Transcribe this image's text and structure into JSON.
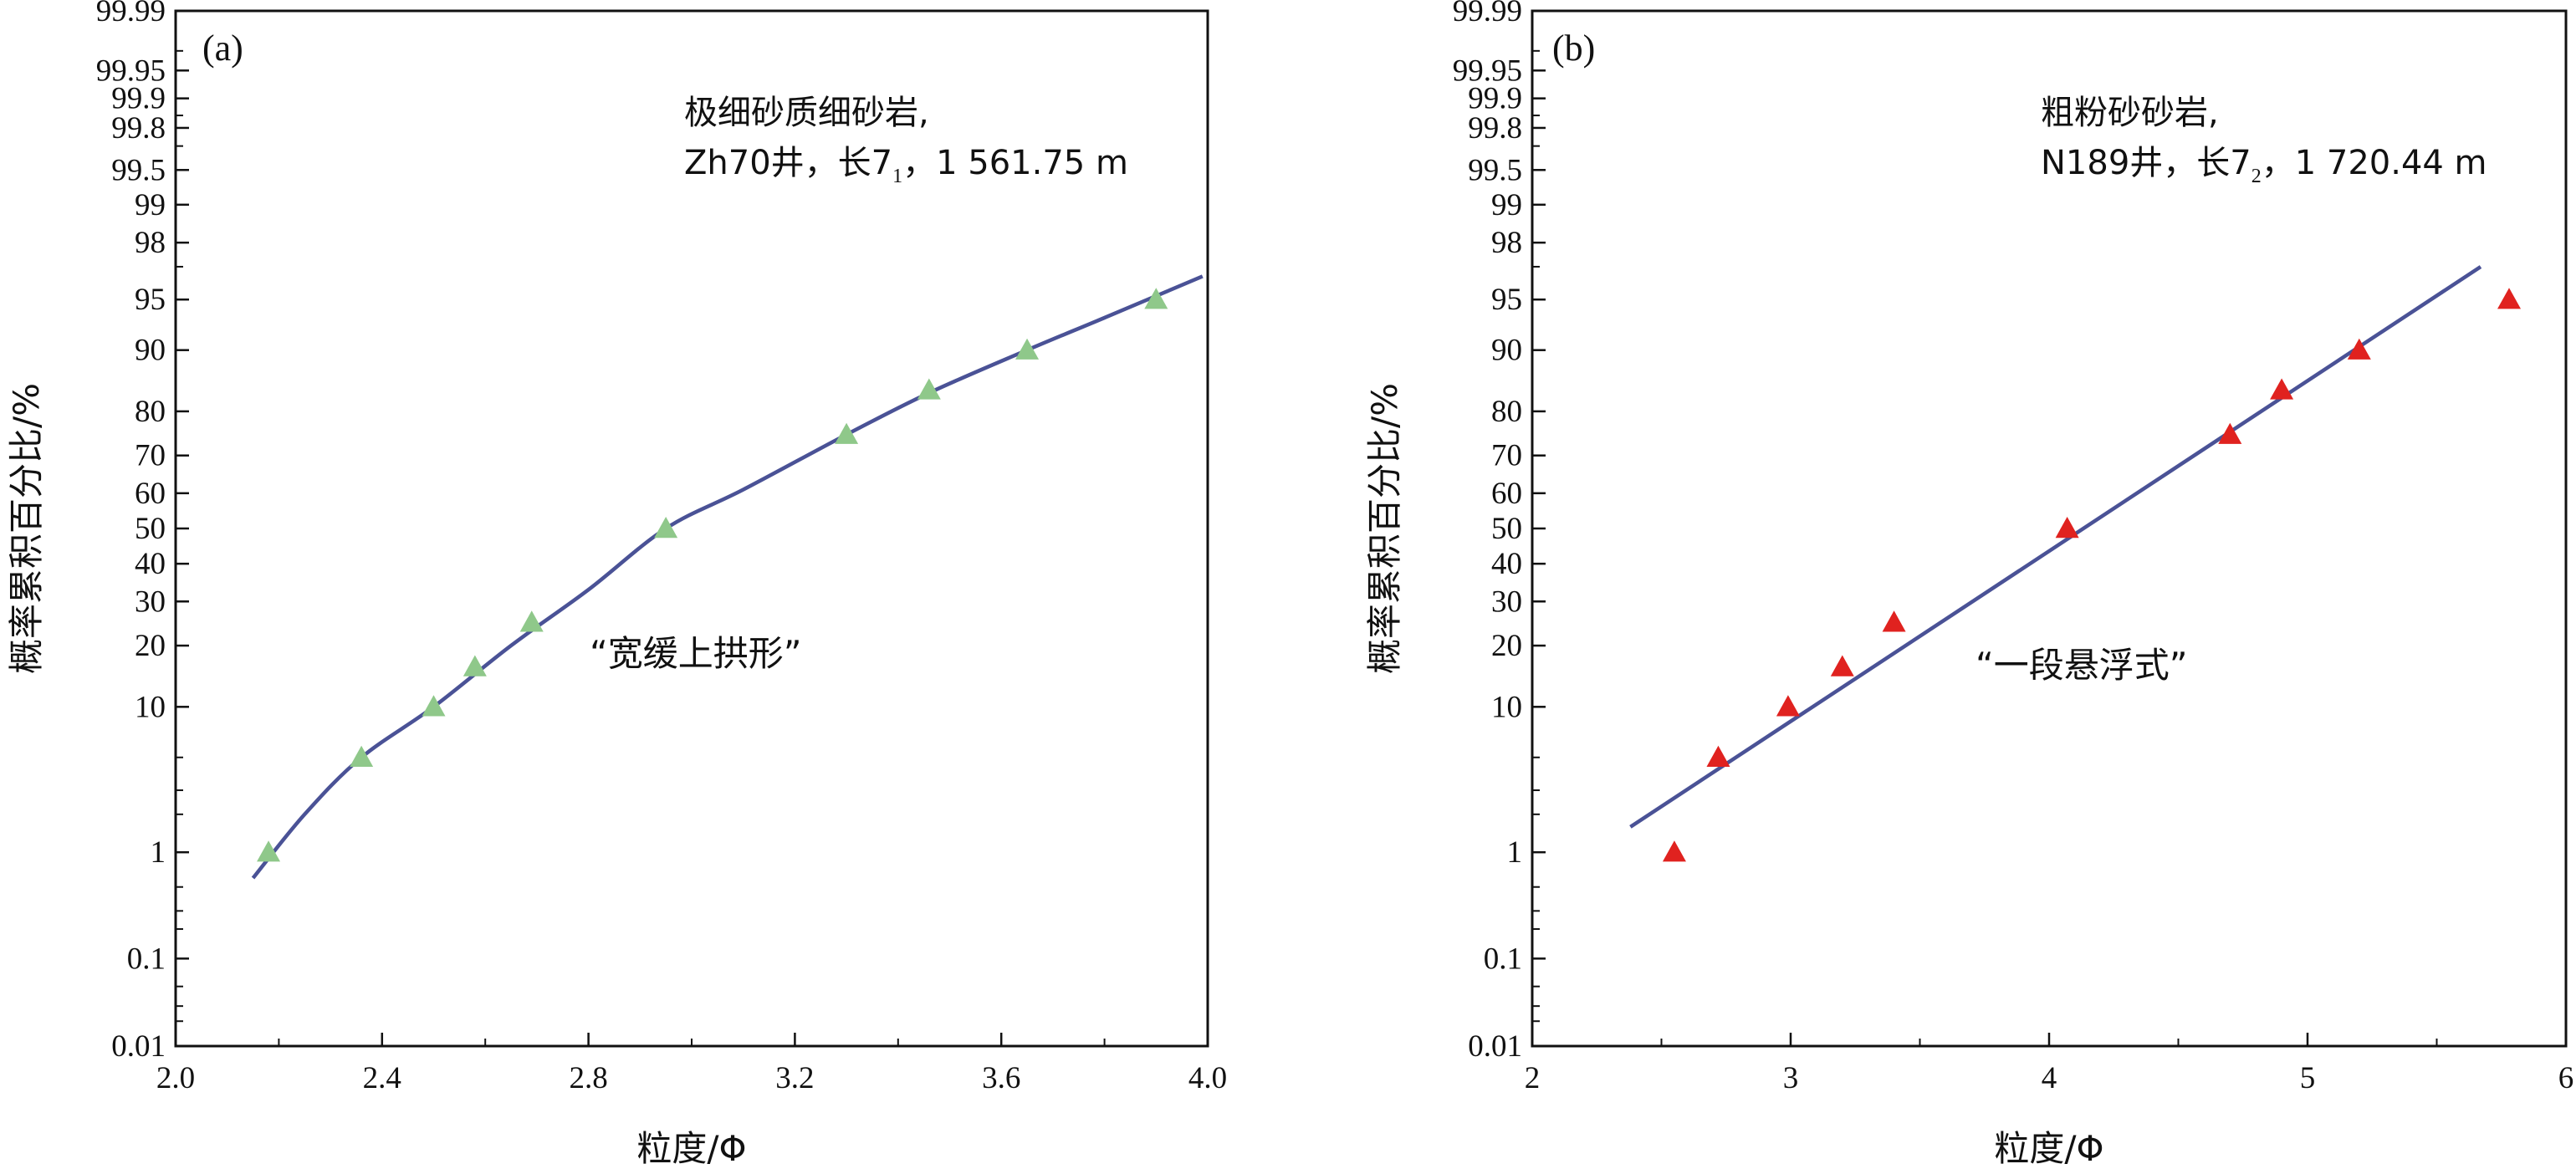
{
  "chart_data": [
    {
      "type": "scatter",
      "panel_label": "(a)",
      "info_line1": "极细砂质细砂岩,",
      "info_line2_pre": "Zh70井，长7",
      "info_line2_sub": "1",
      "info_line2_post": "，1 561.75 m",
      "annotation": "“宽缓上拱形”",
      "xlabel": "粒度/Φ",
      "ylabel": "概率累积百分比/%",
      "xlim": [
        2.0,
        4.0
      ],
      "ylim": [
        0.01,
        99.99
      ],
      "y_scale": "probability",
      "xticks": [
        "2.0",
        "2.4",
        "2.8",
        "3.2",
        "3.6",
        "4.0"
      ],
      "yticks": [
        "0.01",
        "0.1",
        "1",
        "10",
        "20",
        "30",
        "40",
        "50",
        "60",
        "70",
        "80",
        "90",
        "95",
        "98",
        "99",
        "99.5",
        "99.8",
        "99.9",
        "99.95",
        "99.99"
      ],
      "marker": "triangle",
      "marker_color": "#8fc88a",
      "line_color": "#4a5296",
      "points": [
        {
          "x": 2.18,
          "y": 1
        },
        {
          "x": 2.36,
          "y": 5
        },
        {
          "x": 2.5,
          "y": 10
        },
        {
          "x": 2.58,
          "y": 16
        },
        {
          "x": 2.69,
          "y": 25
        },
        {
          "x": 2.95,
          "y": 50
        },
        {
          "x": 3.3,
          "y": 75
        },
        {
          "x": 3.46,
          "y": 84
        },
        {
          "x": 3.65,
          "y": 90
        },
        {
          "x": 3.9,
          "y": 95
        }
      ],
      "fit_line": [
        {
          "x": 2.15,
          "y": 0.6
        },
        {
          "x": 2.25,
          "y": 2
        },
        {
          "x": 2.36,
          "y": 5
        },
        {
          "x": 2.5,
          "y": 10
        },
        {
          "x": 2.65,
          "y": 20
        },
        {
          "x": 2.8,
          "y": 33
        },
        {
          "x": 2.95,
          "y": 50
        },
        {
          "x": 3.1,
          "y": 61
        },
        {
          "x": 3.3,
          "y": 75
        },
        {
          "x": 3.46,
          "y": 83.5
        },
        {
          "x": 3.65,
          "y": 90
        },
        {
          "x": 3.8,
          "y": 93.5
        },
        {
          "x": 3.99,
          "y": 96.5
        }
      ]
    },
    {
      "type": "scatter",
      "panel_label": "(b)",
      "info_line1": "粗粉砂砂岩,",
      "info_line2_pre": "N189井，长7",
      "info_line2_sub": "2",
      "info_line2_post": "，1 720.44 m",
      "annotation": "“一段悬浮式”",
      "xlabel": "粒度/Φ",
      "ylabel": "概率累积百分比/%",
      "xlim": [
        2,
        6
      ],
      "ylim": [
        0.01,
        99.99
      ],
      "y_scale": "probability",
      "xticks": [
        "2",
        "3",
        "4",
        "5",
        "6"
      ],
      "yticks": [
        "0.01",
        "0.1",
        "1",
        "10",
        "20",
        "30",
        "40",
        "50",
        "60",
        "70",
        "80",
        "90",
        "95",
        "98",
        "99",
        "99.5",
        "99.8",
        "99.9",
        "99.95",
        "99.99"
      ],
      "marker": "triangle",
      "marker_color": "#e0221f",
      "line_color": "#4a5296",
      "points": [
        {
          "x": 2.55,
          "y": 1
        },
        {
          "x": 2.72,
          "y": 5
        },
        {
          "x": 2.99,
          "y": 10
        },
        {
          "x": 3.2,
          "y": 16
        },
        {
          "x": 3.4,
          "y": 25
        },
        {
          "x": 4.07,
          "y": 50
        },
        {
          "x": 4.7,
          "y": 75
        },
        {
          "x": 4.9,
          "y": 84
        },
        {
          "x": 5.2,
          "y": 90
        },
        {
          "x": 5.78,
          "y": 95
        }
      ],
      "fit_line": [
        {
          "x": 2.38,
          "y": 1.6
        },
        {
          "x": 5.67,
          "y": 97
        }
      ]
    }
  ]
}
